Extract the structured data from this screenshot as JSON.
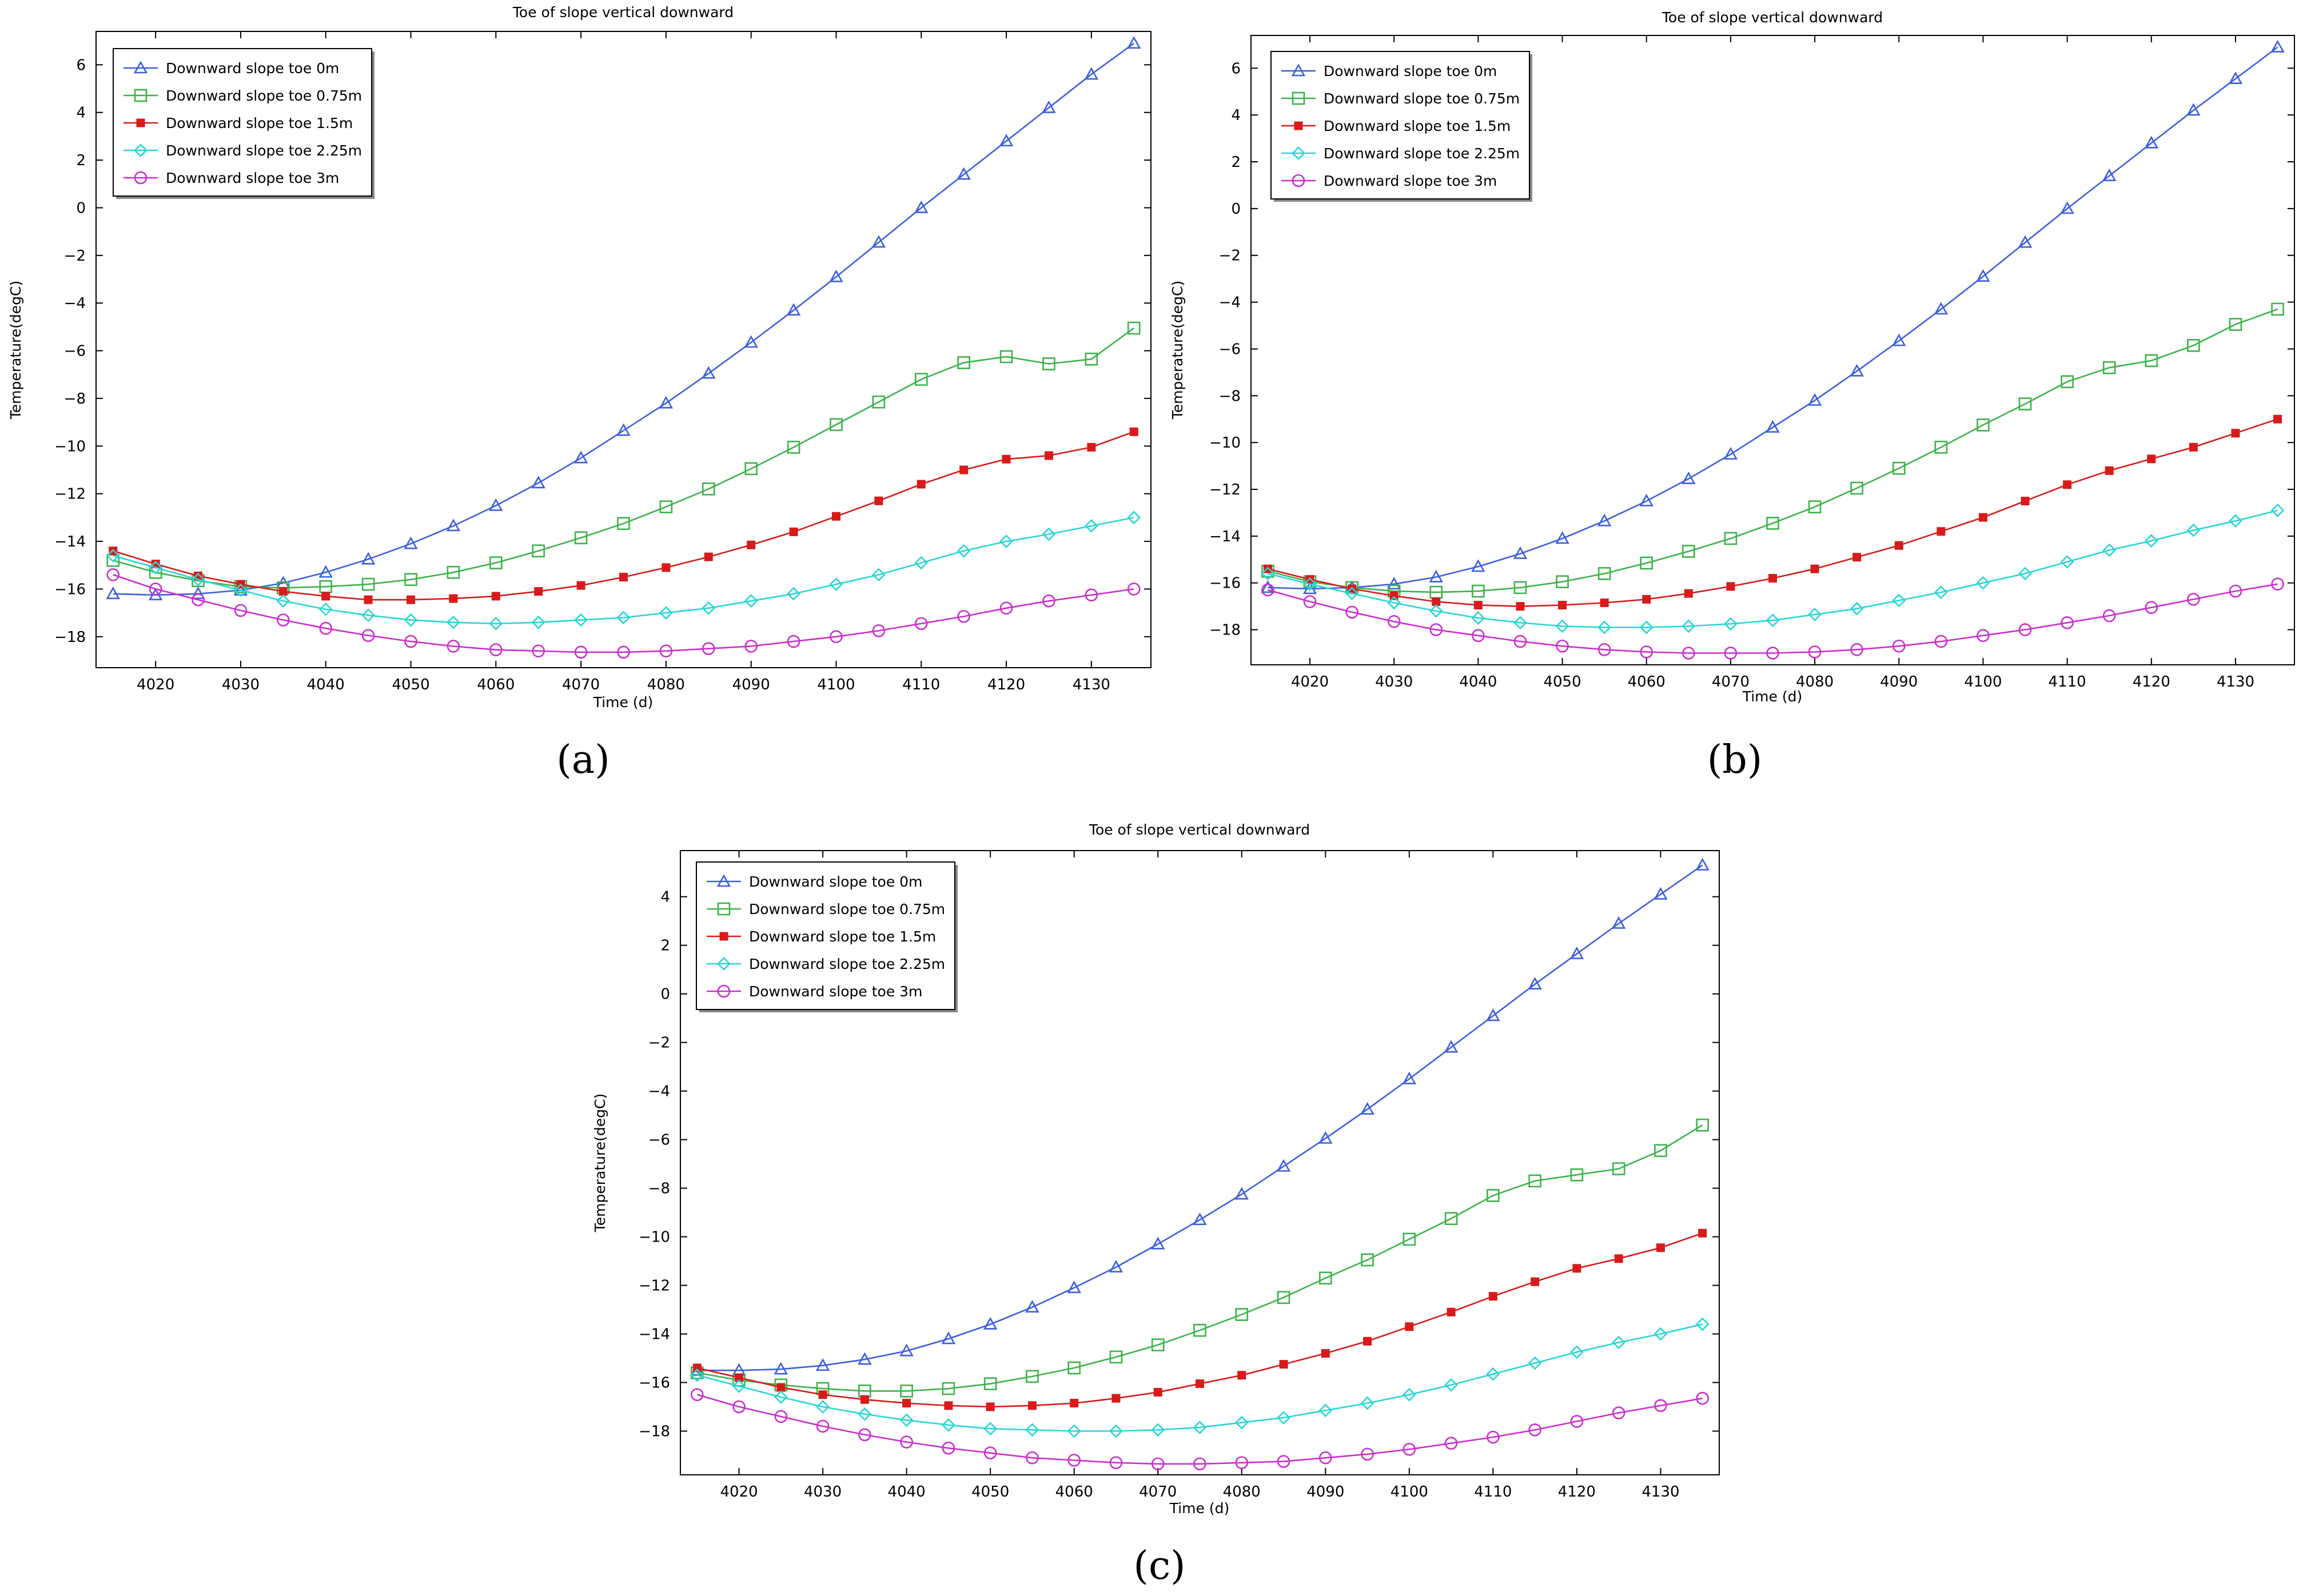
{
  "figure": {
    "subfigures": [
      {
        "label": "(a)",
        "caption_letter": "a"
      },
      {
        "label": "(b)",
        "caption_letter": "b"
      },
      {
        "label": "(c)",
        "caption_letter": "c"
      }
    ]
  },
  "chart_data": [
    {
      "id": "a",
      "type": "line",
      "title": "Toe of slope vertical downward",
      "xlabel": "Time (d)",
      "ylabel": "Temperature(degC)",
      "xlim": [
        4013,
        4137
      ],
      "ylim": [
        -19.3,
        7.4
      ],
      "xticks": [
        4020,
        4030,
        4040,
        4050,
        4060,
        4070,
        4080,
        4090,
        4100,
        4110,
        4120,
        4130
      ],
      "yticks": [
        6,
        4,
        2,
        0,
        -2,
        -4,
        -6,
        -8,
        -10,
        -12,
        -14,
        -16,
        -18
      ],
      "grid": false,
      "legend_position": "top-left",
      "x": [
        4015,
        4020,
        4025,
        4030,
        4035,
        4040,
        4045,
        4050,
        4055,
        4060,
        4065,
        4070,
        4075,
        4080,
        4085,
        4090,
        4095,
        4100,
        4105,
        4110,
        4115,
        4120,
        4125,
        4130,
        4135
      ],
      "series": [
        {
          "name": "Downward slope toe 0m",
          "color": "#3d5fe0",
          "marker": "triangle",
          "values": [
            -16.2,
            -16.25,
            -16.2,
            -16.05,
            -15.75,
            -15.3,
            -14.75,
            -14.1,
            -13.35,
            -12.5,
            -11.55,
            -10.5,
            -9.35,
            -8.2,
            -6.95,
            -5.65,
            -4.3,
            -2.9,
            -1.45,
            0.0,
            1.4,
            2.8,
            4.2,
            5.6,
            6.9
          ]
        },
        {
          "name": "Downward slope toe 0.75m",
          "color": "#3cb34a",
          "marker": "square",
          "values": [
            -14.8,
            -15.3,
            -15.65,
            -15.9,
            -15.95,
            -15.9,
            -15.8,
            -15.6,
            -15.3,
            -14.9,
            -14.4,
            -13.85,
            -13.25,
            -12.55,
            -11.8,
            -10.95,
            -10.05,
            -9.1,
            -8.15,
            -7.2,
            -6.5,
            -6.25,
            -6.55,
            -6.35,
            -5.05
          ]
        },
        {
          "name": "Downward slope toe 1.5m",
          "color": "#d91a1a",
          "marker": "filled-square",
          "values": [
            -14.4,
            -14.95,
            -15.45,
            -15.8,
            -16.1,
            -16.3,
            -16.45,
            -16.45,
            -16.4,
            -16.3,
            -16.1,
            -15.85,
            -15.5,
            -15.1,
            -14.65,
            -14.15,
            -13.6,
            -12.95,
            -12.3,
            -11.6,
            -11.0,
            -10.55,
            -10.4,
            -10.05,
            -9.4
          ]
        },
        {
          "name": "Downward slope toe 2.25m",
          "color": "#29d6d6",
          "marker": "diamond",
          "values": [
            -14.6,
            -15.1,
            -15.6,
            -16.05,
            -16.5,
            -16.85,
            -17.1,
            -17.3,
            -17.4,
            -17.45,
            -17.4,
            -17.3,
            -17.2,
            -17.0,
            -16.8,
            -16.5,
            -16.2,
            -15.8,
            -15.4,
            -14.9,
            -14.4,
            -14.0,
            -13.7,
            -13.35,
            -13.0
          ]
        },
        {
          "name": "Downward slope toe 3m",
          "color": "#cc2ecc",
          "marker": "circle",
          "values": [
            -15.4,
            -16.0,
            -16.45,
            -16.9,
            -17.3,
            -17.65,
            -17.95,
            -18.2,
            -18.4,
            -18.55,
            -18.6,
            -18.65,
            -18.65,
            -18.6,
            -18.5,
            -18.4,
            -18.2,
            -18.0,
            -17.75,
            -17.45,
            -17.15,
            -16.8,
            -16.5,
            -16.25,
            -16.0
          ]
        }
      ]
    },
    {
      "id": "b",
      "type": "line",
      "title": "Toe of slope vertical downward",
      "xlabel": "Time (d)",
      "ylabel": "Temperature(degC)",
      "xlim": [
        4013,
        4137
      ],
      "ylim": [
        -19.5,
        7.4
      ],
      "xticks": [
        4020,
        4030,
        4040,
        4050,
        4060,
        4070,
        4080,
        4090,
        4100,
        4110,
        4120,
        4130
      ],
      "yticks": [
        6,
        4,
        2,
        0,
        -2,
        -4,
        -6,
        -8,
        -10,
        -12,
        -14,
        -16,
        -18
      ],
      "grid": false,
      "legend_position": "top-left",
      "x": [
        4015,
        4020,
        4025,
        4030,
        4035,
        4040,
        4045,
        4050,
        4055,
        4060,
        4065,
        4070,
        4075,
        4080,
        4085,
        4090,
        4095,
        4100,
        4105,
        4110,
        4115,
        4120,
        4125,
        4130,
        4135
      ],
      "series": [
        {
          "name": "Downward slope toe 0m",
          "color": "#3d5fe0",
          "marker": "triangle",
          "values": [
            -16.2,
            -16.25,
            -16.2,
            -16.05,
            -15.75,
            -15.3,
            -14.75,
            -14.1,
            -13.35,
            -12.5,
            -11.55,
            -10.5,
            -9.35,
            -8.2,
            -6.95,
            -5.65,
            -4.3,
            -2.9,
            -1.45,
            0.0,
            1.4,
            2.8,
            4.2,
            5.55,
            6.9
          ]
        },
        {
          "name": "Downward slope toe 0.75m",
          "color": "#3cb34a",
          "marker": "square",
          "values": [
            -15.5,
            -15.95,
            -16.2,
            -16.35,
            -16.4,
            -16.35,
            -16.2,
            -15.95,
            -15.6,
            -15.15,
            -14.65,
            -14.1,
            -13.45,
            -12.75,
            -11.95,
            -11.1,
            -10.2,
            -9.25,
            -8.35,
            -7.4,
            -6.8,
            -6.5,
            -5.85,
            -4.95,
            -4.3
          ]
        },
        {
          "name": "Downward slope toe 1.5m",
          "color": "#d91a1a",
          "marker": "filled-square",
          "values": [
            -15.4,
            -15.85,
            -16.25,
            -16.55,
            -16.8,
            -16.95,
            -17.0,
            -16.95,
            -16.85,
            -16.7,
            -16.45,
            -16.15,
            -15.8,
            -15.4,
            -14.9,
            -14.4,
            -13.8,
            -13.2,
            -12.5,
            -11.8,
            -11.2,
            -10.7,
            -10.2,
            -9.6,
            -9.0
          ]
        },
        {
          "name": "Downward slope toe 2.25m",
          "color": "#29d6d6",
          "marker": "diamond",
          "values": [
            -15.6,
            -16.05,
            -16.45,
            -16.85,
            -17.2,
            -17.5,
            -17.7,
            -17.85,
            -17.9,
            -17.9,
            -17.85,
            -17.75,
            -17.6,
            -17.35,
            -17.1,
            -16.75,
            -16.4,
            -16.0,
            -15.6,
            -15.1,
            -14.6,
            -14.2,
            -13.75,
            -13.35,
            -12.9
          ]
        },
        {
          "name": "Downward slope toe 3m",
          "color": "#cc2ecc",
          "marker": "circle",
          "values": [
            -16.3,
            -16.8,
            -17.25,
            -17.65,
            -18.0,
            -18.25,
            -18.5,
            -18.7,
            -18.85,
            -18.95,
            -19.0,
            -19.0,
            -19.0,
            -18.95,
            -18.85,
            -18.7,
            -18.5,
            -18.25,
            -18.0,
            -17.7,
            -17.4,
            -17.05,
            -16.7,
            -16.35,
            -16.05
          ]
        }
      ]
    },
    {
      "id": "c",
      "type": "line",
      "title": "Toe of slope vertical downward",
      "xlabel": "Time (d)",
      "ylabel": "Temperature(degC)",
      "xlim": [
        4013,
        4137
      ],
      "ylim": [
        -19.8,
        5.9
      ],
      "xticks": [
        4020,
        4030,
        4040,
        4050,
        4060,
        4070,
        4080,
        4090,
        4100,
        4110,
        4120,
        4130
      ],
      "yticks": [
        4,
        2,
        0,
        -2,
        -4,
        -6,
        -8,
        -10,
        -12,
        -14,
        -16,
        -18
      ],
      "grid": false,
      "legend_position": "top-left",
      "x": [
        4015,
        4020,
        4025,
        4030,
        4035,
        4040,
        4045,
        4050,
        4055,
        4060,
        4065,
        4070,
        4075,
        4080,
        4085,
        4090,
        4095,
        4100,
        4105,
        4110,
        4115,
        4120,
        4125,
        4130,
        4135
      ],
      "series": [
        {
          "name": "Downward slope toe 0m",
          "color": "#3d5fe0",
          "marker": "triangle",
          "values": [
            -15.5,
            -15.5,
            -15.45,
            -15.3,
            -15.05,
            -14.7,
            -14.2,
            -13.6,
            -12.9,
            -12.1,
            -11.25,
            -10.3,
            -9.3,
            -8.25,
            -7.1,
            -5.95,
            -4.75,
            -3.5,
            -2.2,
            -0.9,
            0.4,
            1.65,
            2.9,
            4.1,
            5.3
          ]
        },
        {
          "name": "Downward slope toe 0.75m",
          "color": "#3cb34a",
          "marker": "square",
          "values": [
            -15.6,
            -15.9,
            -16.1,
            -16.25,
            -16.35,
            -16.35,
            -16.25,
            -16.05,
            -15.75,
            -15.4,
            -14.95,
            -14.45,
            -13.85,
            -13.2,
            -12.5,
            -11.7,
            -10.95,
            -10.1,
            -9.25,
            -8.3,
            -7.7,
            -7.45,
            -7.2,
            -6.45,
            -5.4
          ]
        },
        {
          "name": "Downward slope toe 1.5m",
          "color": "#d91a1a",
          "marker": "filled-square",
          "values": [
            -15.4,
            -15.8,
            -16.2,
            -16.5,
            -16.7,
            -16.85,
            -16.95,
            -17.0,
            -16.95,
            -16.85,
            -16.65,
            -16.4,
            -16.05,
            -15.7,
            -15.25,
            -14.8,
            -14.3,
            -13.7,
            -13.1,
            -12.45,
            -11.85,
            -11.3,
            -10.9,
            -10.45,
            -9.85
          ]
        },
        {
          "name": "Downward slope toe 2.25m",
          "color": "#29d6d6",
          "marker": "diamond",
          "values": [
            -15.7,
            -16.15,
            -16.6,
            -17.0,
            -17.3,
            -17.55,
            -17.75,
            -17.9,
            -17.95,
            -18.0,
            -18.0,
            -17.95,
            -17.85,
            -17.65,
            -17.45,
            -17.15,
            -16.85,
            -16.5,
            -16.1,
            -15.65,
            -15.2,
            -14.75,
            -14.35,
            -14.0,
            -13.6
          ]
        },
        {
          "name": "Downward slope toe 3m",
          "color": "#cc2ecc",
          "marker": "circle",
          "values": [
            -16.5,
            -17.0,
            -17.4,
            -17.8,
            -18.15,
            -18.45,
            -18.7,
            -18.9,
            -19.1,
            -19.2,
            -19.3,
            -19.35,
            -19.35,
            -19.3,
            -19.25,
            -19.1,
            -18.95,
            -18.75,
            -18.5,
            -18.25,
            -17.95,
            -17.6,
            -17.25,
            -16.95,
            -16.65
          ]
        }
      ]
    }
  ]
}
